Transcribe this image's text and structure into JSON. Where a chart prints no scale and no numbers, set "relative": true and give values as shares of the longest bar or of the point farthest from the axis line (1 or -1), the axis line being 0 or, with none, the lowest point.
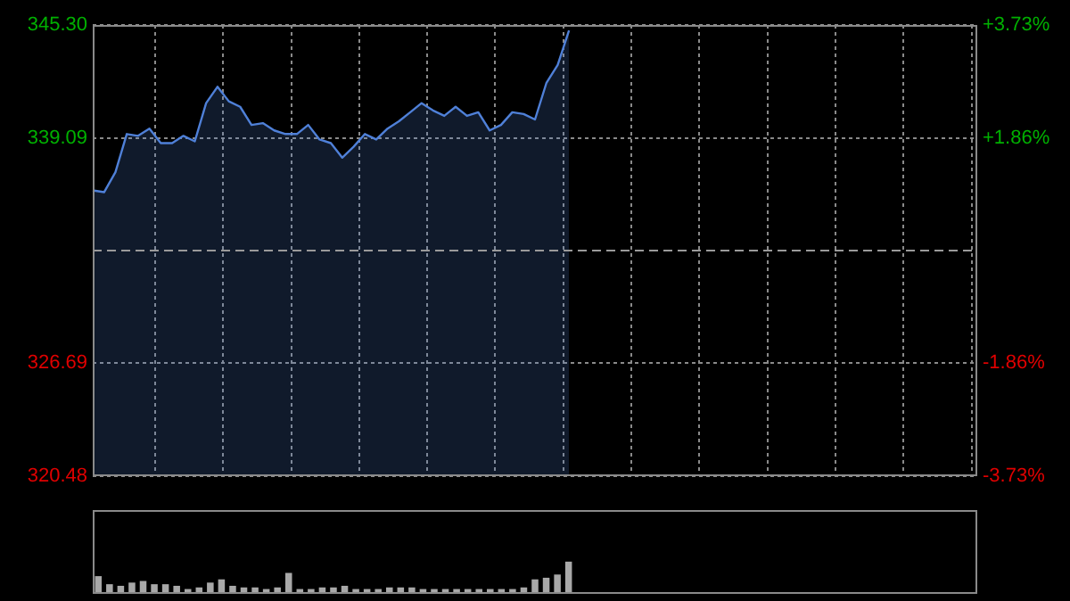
{
  "chart_data": [
    {
      "type": "area",
      "categories": [
        null,
        null,
        null,
        null,
        null,
        null,
        null,
        null,
        null,
        null,
        null,
        null,
        null,
        null,
        null,
        null,
        null,
        null,
        null,
        null,
        null,
        null,
        null,
        null,
        null,
        null,
        null,
        null,
        null,
        null,
        null,
        null,
        null,
        null,
        null,
        null,
        null,
        null,
        null,
        null,
        null,
        null,
        null,
        null,
        null,
        null,
        null,
        null,
        null,
        null,
        null,
        null,
        null,
        null,
        null,
        null,
        null,
        null,
        null,
        null,
        null,
        null,
        null,
        null,
        null,
        null,
        null,
        null,
        null,
        null,
        null,
        null,
        null,
        null,
        null,
        null,
        null,
        null,
        null
      ],
      "series": [
        {
          "color": "#4f80d8",
          "values": [
            336.2,
            336.1,
            337.2,
            339.3,
            339.2,
            339.6,
            338.8,
            338.8,
            339.2,
            338.9,
            341.0,
            341.9,
            341.1,
            340.8,
            339.8,
            339.9,
            339.5,
            339.3,
            339.3,
            339.8,
            339.0,
            338.8,
            338.0,
            338.6,
            339.3,
            339.0,
            339.6,
            340.0,
            340.5,
            341.0,
            340.6,
            340.3,
            340.8,
            340.3,
            340.5,
            339.5,
            339.8,
            340.5,
            340.4,
            340.1,
            342.1,
            343.1,
            345.0,
            null,
            null,
            null,
            null,
            null,
            null,
            null,
            null,
            null,
            null,
            null,
            null,
            null,
            null,
            null,
            null,
            null,
            null,
            null,
            null,
            null,
            null,
            null,
            null,
            null,
            null,
            null,
            null,
            null,
            null,
            null,
            null,
            null,
            null,
            null,
            null
          ]
        }
      ],
      "ylim": [
        320.48,
        345.3
      ],
      "yticks": [
        {
          "value": 320.48,
          "label": "320.48"
        },
        {
          "value": 326.69,
          "label": "326.69"
        },
        {
          "value": 339.09,
          "label": "339.09"
        },
        {
          "value": 345.3,
          "label": "345.30"
        }
      ],
      "y2lim": [
        -3.73,
        3.73
      ],
      "y2ticks": [
        {
          "value": -3.73,
          "label": "-3.73%"
        },
        {
          "value": -1.86,
          "label": "-1.86%"
        },
        {
          "value": 1.86,
          "label": "+1.86%"
        },
        {
          "value": 3.73,
          "label": "+3.73%"
        }
      ],
      "grid": true,
      "ref_lines": [
        {
          "axis": "y",
          "value": 332.89,
          "line_style": "dashed"
        }
      ]
    },
    {
      "type": "bar",
      "relative": true,
      "categories": [
        null,
        null,
        null,
        null,
        null,
        null,
        null,
        null,
        null,
        null,
        null,
        null,
        null,
        null,
        null,
        null,
        null,
        null,
        null,
        null,
        null,
        null,
        null,
        null,
        null,
        null,
        null,
        null,
        null,
        null,
        null,
        null,
        null,
        null,
        null,
        null,
        null,
        null,
        null,
        null,
        null,
        null,
        null,
        null,
        null,
        null,
        null,
        null,
        null,
        null,
        null,
        null,
        null,
        null,
        null,
        null,
        null,
        null,
        null,
        null,
        null,
        null,
        null,
        null,
        null,
        null,
        null,
        null,
        null,
        null,
        null,
        null,
        null,
        null,
        null,
        null,
        null,
        null,
        null
      ],
      "series": [
        {
          "color": "#a8a8a8",
          "values": [
            0.55,
            0.3,
            0.25,
            0.35,
            0.4,
            0.3,
            0.3,
            0.25,
            0.15,
            0.2,
            0.35,
            0.45,
            0.25,
            0.2,
            0.2,
            0.15,
            0.2,
            0.65,
            0.15,
            0.15,
            0.2,
            0.2,
            0.25,
            0.15,
            0.15,
            0.15,
            0.2,
            0.2,
            0.2,
            0.15,
            0.15,
            0.15,
            0.15,
            0.15,
            0.15,
            0.15,
            0.15,
            0.15,
            0.2,
            0.45,
            0.5,
            0.6,
            1,
            null,
            null,
            null,
            null,
            null,
            null,
            null,
            null,
            null,
            null,
            null,
            null,
            null,
            null,
            null,
            null,
            null,
            null,
            null,
            null,
            null,
            null,
            null,
            null,
            null,
            null,
            null,
            null,
            null,
            null,
            null,
            null,
            null,
            null,
            null,
            null
          ]
        }
      ]
    }
  ]
}
